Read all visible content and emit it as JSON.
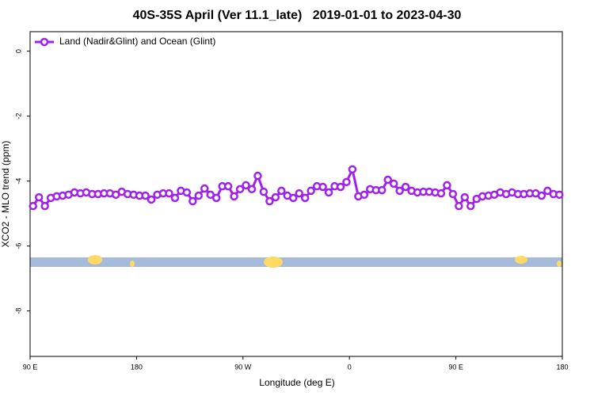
{
  "chart_data": {
    "type": "line",
    "title": "40S-35S April (Ver 11.1_late)   2019-01-01 to 2023-04-30",
    "xlabel": "Longitude (deg E)",
    "ylabel": "XCO2 - MLO trend (ppm)",
    "xlim": [
      90,
      540
    ],
    "ylim": [
      -9.4,
      0.6
    ],
    "xticks": [
      {
        "value": 90,
        "label": "90 E"
      },
      180,
      {
        "value": 270,
        "label": "90 W"
      },
      {
        "value": 360,
        "label": "0"
      },
      {
        "value": 450,
        "label": "90 E"
      },
      {
        "value": 540,
        "label": "180"
      }
    ],
    "yticks": [
      0,
      -2,
      -4,
      -6,
      -8
    ],
    "legend": "upper left",
    "x": [
      92.5,
      97.5,
      102.5,
      107.5,
      112.5,
      117.5,
      122.5,
      127.5,
      132.5,
      137.5,
      142.5,
      147.5,
      152.5,
      157.5,
      162.5,
      167.5,
      172.5,
      177.5,
      182.5,
      187.5,
      192.5,
      197.5,
      202.5,
      207.5,
      212.5,
      217.5,
      222.5,
      227.5,
      232.5,
      237.5,
      242.5,
      247.5,
      252.5,
      257.5,
      262.5,
      267.5,
      272.5,
      277.5,
      282.5,
      287.5,
      292.5,
      297.5,
      302.5,
      307.5,
      312.5,
      317.5,
      322.5,
      327.5,
      332.5,
      337.5,
      342.5,
      347.5,
      352.5,
      357.5,
      362.5,
      367.5,
      372.5,
      377.5,
      382.5,
      387.5,
      392.5,
      397.5,
      402.5,
      407.5,
      412.5,
      417.5,
      422.5,
      427.5,
      432.5,
      437.5,
      442.5,
      447.5,
      452.5,
      457.5,
      462.5,
      467.5,
      472.5,
      477.5,
      482.5,
      487.5,
      492.5,
      497.5,
      502.5,
      507.5,
      512.5,
      517.5,
      522.5,
      527.5,
      532.5,
      537.5
    ],
    "series": [
      {
        "name": "Land (Nadir&Glint) and Ocean (Glint)",
        "color": "#a020f0",
        "values": [
          -4.77,
          -4.5,
          -4.77,
          -4.52,
          -4.47,
          -4.45,
          -4.42,
          -4.35,
          -4.38,
          -4.35,
          -4.4,
          -4.4,
          -4.38,
          -4.38,
          -4.42,
          -4.33,
          -4.4,
          -4.42,
          -4.45,
          -4.45,
          -4.57,
          -4.42,
          -4.38,
          -4.38,
          -4.52,
          -4.3,
          -4.35,
          -4.62,
          -4.45,
          -4.23,
          -4.42,
          -4.52,
          -4.16,
          -4.16,
          -4.47,
          -4.25,
          -4.13,
          -4.25,
          -3.84,
          -4.33,
          -4.62,
          -4.5,
          -4.3,
          -4.45,
          -4.52,
          -4.38,
          -4.52,
          -4.3,
          -4.16,
          -4.18,
          -4.35,
          -4.16,
          -4.18,
          -4.03,
          -3.64,
          -4.47,
          -4.42,
          -4.25,
          -4.28,
          -4.28,
          -3.96,
          -4.08,
          -4.3,
          -4.18,
          -4.3,
          -4.35,
          -4.33,
          -4.33,
          -4.35,
          -4.38,
          -4.13,
          -4.4,
          -4.77,
          -4.5,
          -4.77,
          -4.55,
          -4.47,
          -4.45,
          -4.42,
          -4.35,
          -4.4,
          -4.35,
          -4.4,
          -4.4,
          -4.38,
          -4.38,
          -4.45,
          -4.3,
          -4.4,
          -4.42
        ]
      }
    ]
  }
}
